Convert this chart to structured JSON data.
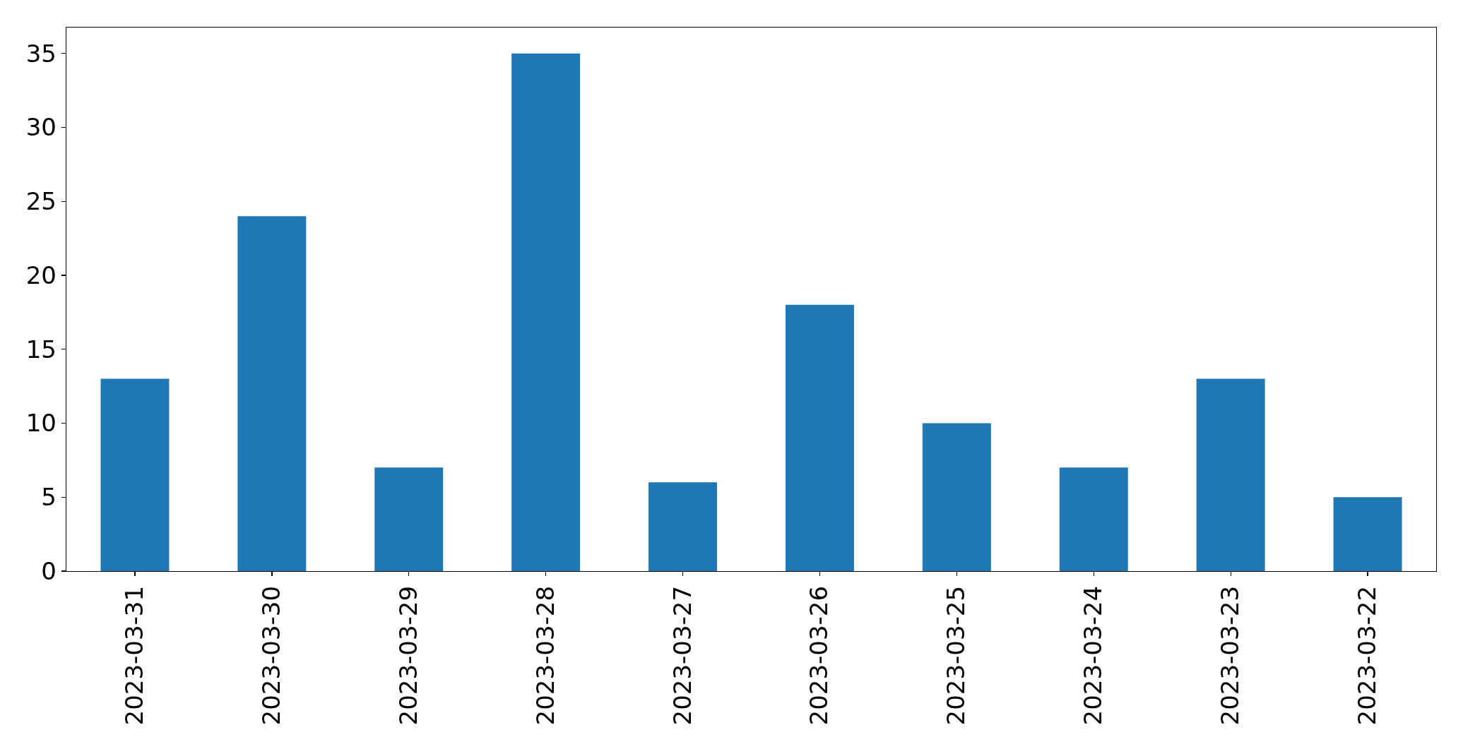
{
  "chart_data": {
    "type": "bar",
    "categories": [
      "2023-03-31",
      "2023-03-30",
      "2023-03-29",
      "2023-03-28",
      "2023-03-27",
      "2023-03-26",
      "2023-03-25",
      "2023-03-24",
      "2023-03-23",
      "2023-03-22"
    ],
    "values": [
      13,
      24,
      7,
      35,
      6,
      18,
      10,
      7,
      13,
      5
    ],
    "color": "#1f77b4",
    "ylim": [
      0,
      36.75
    ],
    "yticks": [
      0,
      5,
      10,
      15,
      20,
      25,
      30,
      35
    ]
  }
}
